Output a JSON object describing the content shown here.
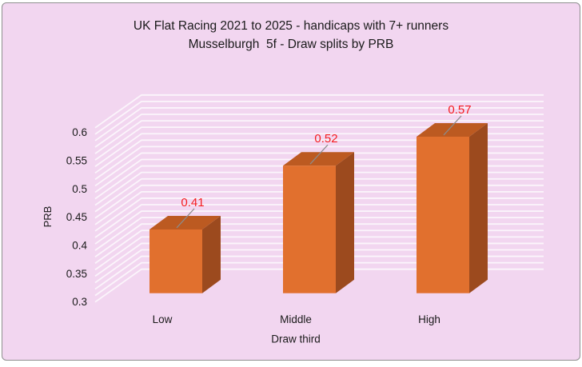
{
  "chart_data": {
    "type": "bar",
    "style": "3d-column",
    "title": "UK Flat Racing 2021 to 2025 - handicaps with 7+ runners",
    "subtitle": "Musselburgh  5f - Draw splits by PRB",
    "categories": [
      "Low",
      "Middle",
      "High"
    ],
    "values": [
      0.41,
      0.52,
      0.57
    ],
    "data_labels": [
      "0.41",
      "0.52",
      "0.57"
    ],
    "xlabel": "Draw third",
    "ylabel": "PRB",
    "ylim": [
      0.3,
      0.6
    ],
    "ytick_interval": 0.05,
    "yticks": [
      "0.6",
      "0.55",
      "0.5",
      "0.45",
      "0.4",
      "0.35",
      "0.3"
    ],
    "grid": "horizontal-minor-lines-on-back-wall",
    "legend": "none"
  },
  "colors": {
    "background": "#FFFFFF",
    "panel": "#F2D6F0",
    "panel_border": "#8F8F8F",
    "gridline": "#FBF5FB",
    "bar_front": "#E1702E",
    "bar_top": "#BC5A21",
    "bar_side": "#9C4A1E",
    "data_label": "#F41C20",
    "leader_line": "#8C8C8C",
    "text": "#1A1A1A"
  }
}
